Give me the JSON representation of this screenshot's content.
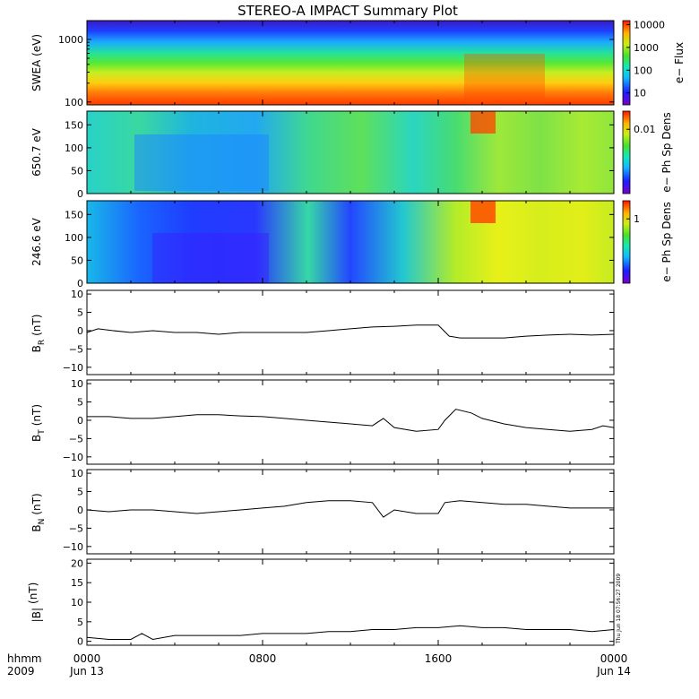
{
  "chart_data": [
    {
      "type": "heatmap",
      "title": "STEREO-A IMPACT Summary Plot",
      "ylabel": "SWEA (eV)",
      "yscale": "log",
      "yticks": [
        "1000",
        "100"
      ],
      "ylim": [
        90,
        2000
      ],
      "colorbar": {
        "label": "e− Flux",
        "scale": "log",
        "ticks": [
          "10000",
          "1000",
          "100",
          "10"
        ],
        "range": [
          3,
          15000
        ]
      },
      "features": {
        "flux_peak_time_hours": [
          18.0,
          20.5
        ]
      }
    },
    {
      "type": "heatmap",
      "ylabel": "650.7 eV",
      "ylim": [
        0,
        180
      ],
      "yticks": [
        "150",
        "100",
        "50",
        "0"
      ],
      "colorbar": {
        "label": "e− Ph Sp Dens",
        "scale": "log",
        "ticks": [
          "0.01"
        ]
      }
    },
    {
      "type": "heatmap",
      "ylabel": "246.6 eV",
      "ylim": [
        0,
        180
      ],
      "yticks": [
        "150",
        "100",
        "50",
        "0"
      ],
      "colorbar": {
        "label": "e− Ph Sp Dens",
        "scale": "log",
        "ticks": [
          "1"
        ]
      }
    },
    {
      "type": "line",
      "ylabel": "B_R (nT)",
      "ylabel_main": "B",
      "ylabel_sub": "R",
      "ylabel_unit": "(nT)",
      "ylim": [
        -12,
        11
      ],
      "yticks": [
        "10",
        "5",
        "0",
        "−5",
        "−10"
      ],
      "x": [
        0,
        0.5,
        1.2,
        2,
        3,
        4,
        5,
        6,
        7,
        8,
        9,
        10,
        11,
        12,
        13,
        14,
        15,
        16,
        16.5,
        17,
        18,
        19,
        20,
        21,
        22,
        23,
        24
      ],
      "values": [
        -0.5,
        0.5,
        0,
        -0.5,
        0,
        -0.5,
        -0.5,
        -1,
        -0.5,
        -0.5,
        -0.5,
        -0.5,
        0,
        0.5,
        1,
        1.2,
        1.5,
        1.5,
        -1.5,
        -2,
        -2,
        -2,
        -1.5,
        -1.2,
        -1,
        -1.2,
        -1
      ]
    },
    {
      "type": "line",
      "ylabel": "B_T (nT)",
      "ylabel_main": "B",
      "ylabel_sub": "T",
      "ylabel_unit": "(nT)",
      "ylim": [
        -12,
        11
      ],
      "yticks": [
        "10",
        "5",
        "0",
        "−5",
        "−10"
      ],
      "x": [
        0,
        1,
        2,
        3,
        4,
        5,
        6,
        7,
        8,
        9,
        10,
        11,
        12,
        13,
        13.5,
        14,
        15,
        16,
        16.3,
        16.8,
        17.5,
        18,
        19,
        20,
        21,
        22,
        23,
        23.5,
        24
      ],
      "values": [
        1,
        1,
        0.5,
        0.5,
        1,
        1.5,
        1.5,
        1.2,
        1,
        0.5,
        0,
        -0.5,
        -1,
        -1.5,
        0.5,
        -2,
        -3,
        -2.5,
        0,
        3,
        2,
        0.5,
        -1,
        -2,
        -2.5,
        -3,
        -2.5,
        -1.5,
        -2
      ]
    },
    {
      "type": "line",
      "ylabel": "B_N (nT)",
      "ylabel_main": "B",
      "ylabel_sub": "N",
      "ylabel_unit": "(nT)",
      "ylim": [
        -12,
        11
      ],
      "yticks": [
        "10",
        "5",
        "0",
        "−5",
        "−10"
      ],
      "x": [
        0,
        1,
        2,
        3,
        4,
        5,
        6,
        7,
        8,
        9,
        10,
        11,
        12,
        13,
        13.5,
        14,
        15,
        16,
        16.3,
        17,
        18,
        19,
        20,
        21,
        22,
        23,
        24
      ],
      "values": [
        0,
        -0.5,
        0,
        0,
        -0.5,
        -1,
        -0.5,
        0,
        0.5,
        1,
        2,
        2.5,
        2.5,
        2,
        -2,
        0,
        -1,
        -1,
        2,
        2.5,
        2,
        1.5,
        1.5,
        1,
        0.5,
        0.5,
        0.5
      ]
    },
    {
      "type": "line",
      "ylabel": "|B| (nT)",
      "ylabel_main": "|B|",
      "ylabel_sub": "",
      "ylabel_unit": "(nT)",
      "ylim": [
        -1,
        21
      ],
      "yticks": [
        "20",
        "15",
        "10",
        "5",
        "0"
      ],
      "x": [
        0,
        1,
        2,
        2.5,
        3,
        4,
        5,
        6,
        7,
        8,
        9,
        10,
        11,
        12,
        13,
        14,
        15,
        16,
        17,
        18,
        19,
        20,
        21,
        22,
        23,
        24
      ],
      "values": [
        1,
        0.5,
        0.5,
        2,
        0.5,
        1.5,
        1.5,
        1.5,
        1.5,
        2,
        2,
        2,
        2.5,
        2.5,
        3,
        3,
        3.5,
        3.5,
        4,
        3.5,
        3.5,
        3,
        3,
        3,
        2.5,
        3
      ]
    }
  ],
  "xaxis": {
    "label_line1": "hhmm",
    "label_line2": "2009",
    "ticks": [
      {
        "top": "0000",
        "bottom": "Jun 13",
        "hour": 0
      },
      {
        "top": "0800",
        "bottom": "",
        "hour": 8
      },
      {
        "top": "1600",
        "bottom": "",
        "hour": 16
      },
      {
        "top": "0000",
        "bottom": "Jun 14",
        "hour": 24
      }
    ]
  },
  "timestamp": "Thu Jun 18 07:56:27 2009"
}
